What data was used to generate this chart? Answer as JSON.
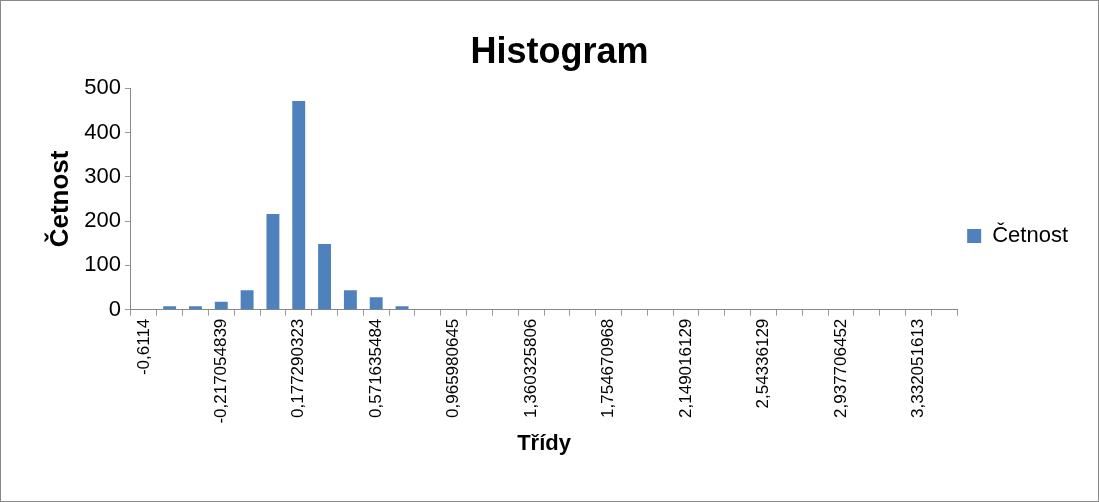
{
  "chart_data": {
    "type": "bar",
    "title": "Histogram",
    "xlabel": "Třídy",
    "ylabel": "Četnost",
    "categories": [
      "-0,6114",
      null,
      null,
      "-0,217054839",
      null,
      null,
      "0,177290323",
      null,
      null,
      "0,571635484",
      null,
      null,
      "0,965980645",
      null,
      null,
      "1,360325806",
      null,
      null,
      "1,754670968",
      null,
      null,
      "2,149016129",
      null,
      null,
      "2,54336129",
      null,
      null,
      "2,937706452",
      null,
      null,
      "3,332051613",
      null
    ],
    "series": [
      {
        "name": "Četnost",
        "color": "#4f81bd",
        "values": [
          0,
          8,
          8,
          18,
          44,
          216,
          471,
          148,
          44,
          28,
          8,
          0,
          0,
          0,
          0,
          0,
          0,
          0,
          0,
          0,
          0,
          0,
          0,
          0,
          0,
          0,
          0,
          0,
          0,
          0,
          0,
          0
        ]
      }
    ],
    "ylim": [
      0,
      500
    ],
    "yticks": [
      0,
      100,
      200,
      300,
      400,
      500
    ],
    "grid": false,
    "legend": "right"
  }
}
